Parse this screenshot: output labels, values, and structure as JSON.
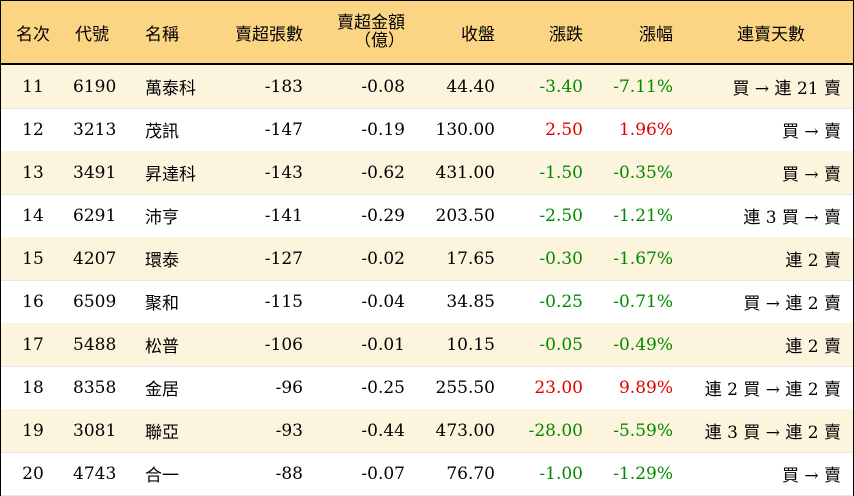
{
  "colors": {
    "header_bg": "#fbd484",
    "alt_row_bg": "#fdf4dd",
    "up": "#e00000",
    "down": "#008a00"
  },
  "header": {
    "rank": "名次",
    "code": "代號",
    "name": "名稱",
    "sheets": "賣超張數",
    "amount_line1": "賣超金額",
    "amount_line2": "（億）",
    "close": "收盤",
    "change": "漲跌",
    "pct": "漲幅",
    "streak": "連賣天數"
  },
  "rows": [
    {
      "rank": "11",
      "code": "6190",
      "name": "萬泰科",
      "sheets": "-183",
      "amount": "-0.08",
      "close": "44.40",
      "change": "-3.40",
      "pct": "-7.11%",
      "streak": "買 → 連 21 賣"
    },
    {
      "rank": "12",
      "code": "3213",
      "name": "茂訊",
      "sheets": "-147",
      "amount": "-0.19",
      "close": "130.00",
      "change": "2.50",
      "pct": "1.96%",
      "streak": "買 → 賣"
    },
    {
      "rank": "13",
      "code": "3491",
      "name": "昇達科",
      "sheets": "-143",
      "amount": "-0.62",
      "close": "431.00",
      "change": "-1.50",
      "pct": "-0.35%",
      "streak": "買 → 賣"
    },
    {
      "rank": "14",
      "code": "6291",
      "name": "沛亨",
      "sheets": "-141",
      "amount": "-0.29",
      "close": "203.50",
      "change": "-2.50",
      "pct": "-1.21%",
      "streak": "連 3 買 → 賣"
    },
    {
      "rank": "15",
      "code": "4207",
      "name": "環泰",
      "sheets": "-127",
      "amount": "-0.02",
      "close": "17.65",
      "change": "-0.30",
      "pct": "-1.67%",
      "streak": "連 2 賣"
    },
    {
      "rank": "16",
      "code": "6509",
      "name": "聚和",
      "sheets": "-115",
      "amount": "-0.04",
      "close": "34.85",
      "change": "-0.25",
      "pct": "-0.71%",
      "streak": "買 → 連 2 賣"
    },
    {
      "rank": "17",
      "code": "5488",
      "name": "松普",
      "sheets": "-106",
      "amount": "-0.01",
      "close": "10.15",
      "change": "-0.05",
      "pct": "-0.49%",
      "streak": "連 2 賣"
    },
    {
      "rank": "18",
      "code": "8358",
      "name": "金居",
      "sheets": "-96",
      "amount": "-0.25",
      "close": "255.50",
      "change": "23.00",
      "pct": "9.89%",
      "streak": "連 2 買 → 連 2 賣"
    },
    {
      "rank": "19",
      "code": "3081",
      "name": "聯亞",
      "sheets": "-93",
      "amount": "-0.44",
      "close": "473.00",
      "change": "-28.00",
      "pct": "-5.59%",
      "streak": "連 3 買 → 連 2 賣"
    },
    {
      "rank": "20",
      "code": "4743",
      "name": "合一",
      "sheets": "-88",
      "amount": "-0.07",
      "close": "76.70",
      "change": "-1.00",
      "pct": "-1.29%",
      "streak": "買 → 賣"
    }
  ]
}
